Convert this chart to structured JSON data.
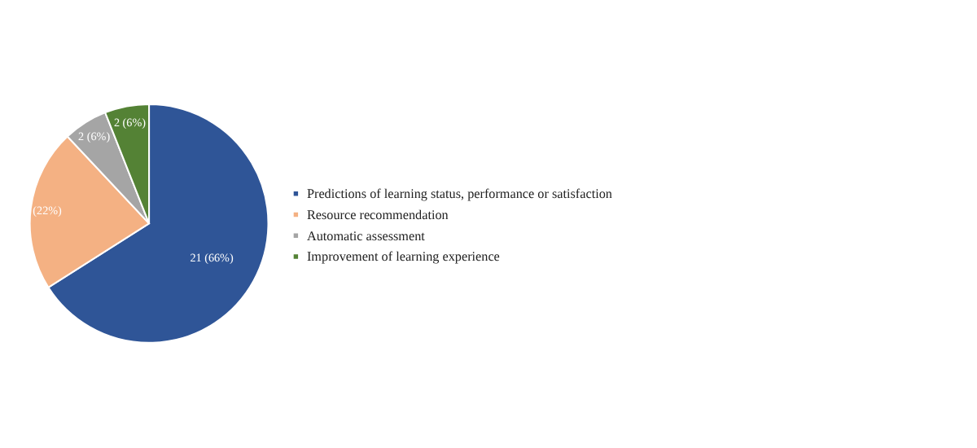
{
  "chart_data": {
    "type": "pie",
    "categories": [
      "Predictions of learning status, performance or satisfaction",
      "Resource recommendation",
      "Automatic assessment",
      "Improvement of learning experience"
    ],
    "values": [
      66,
      22,
      6,
      6
    ],
    "colors": [
      "#2f5597",
      "#f4b183",
      "#a5a5a5",
      "#548235"
    ],
    "value_labels": [
      "21 (66%)",
      "(22%)",
      "2 (6%)",
      "2 (6%)"
    ],
    "legend": "right"
  }
}
